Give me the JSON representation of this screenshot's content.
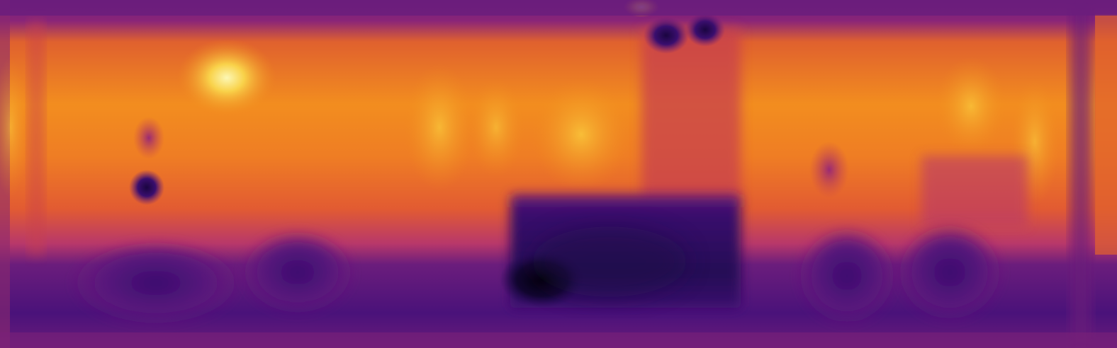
{
  "colormap": "inferno",
  "palette": {
    "darkest": "#000004",
    "deep_purple": "#3a0e6e",
    "purple": "#6a1b7a",
    "magenta": "#b0306a",
    "red_orange": "#d84a3a",
    "orange": "#f08a1c",
    "yellow": "#f9c43a",
    "pale_yellow": "#fcf7b4"
  }
}
